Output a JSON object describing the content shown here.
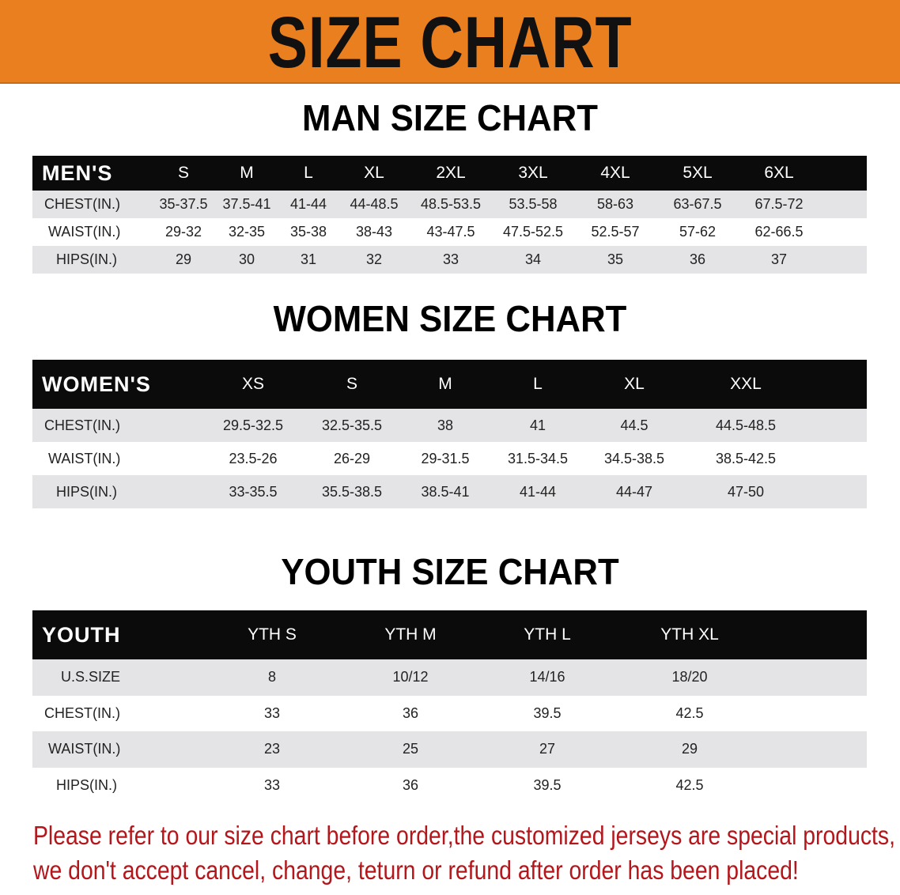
{
  "banner": {
    "title": "SIZE CHART",
    "color": "#e97f1e"
  },
  "men": {
    "title": "MAN SIZE CHART",
    "header": [
      "MEN'S",
      "S",
      "M",
      "L",
      "XL",
      "2XL",
      "3XL",
      "4XL",
      "5XL",
      "6XL"
    ],
    "rows": [
      [
        "CHEST(IN.)",
        "35-37.5",
        "37.5-41",
        "41-44",
        "44-48.5",
        "48.5-53.5",
        "53.5-58",
        "58-63",
        "63-67.5",
        "67.5-72"
      ],
      [
        "WAIST(IN.)",
        "29-32",
        "32-35",
        "35-38",
        "38-43",
        "43-47.5",
        "47.5-52.5",
        "52.5-57",
        "57-62",
        "62-66.5"
      ],
      [
        "HIPS(IN.)",
        "29",
        "30",
        "31",
        "32",
        "33",
        "34",
        "35",
        "36",
        "37"
      ]
    ]
  },
  "women": {
    "title": "WOMEN SIZE CHART",
    "header": [
      "WOMEN'S",
      "XS",
      "S",
      "M",
      "L",
      "XL",
      "XXL"
    ],
    "rows": [
      [
        "CHEST(IN.)",
        "29.5-32.5",
        "32.5-35.5",
        "38",
        "41",
        "44.5",
        "44.5-48.5"
      ],
      [
        "WAIST(IN.)",
        "23.5-26",
        "26-29",
        "29-31.5",
        "31.5-34.5",
        "34.5-38.5",
        "38.5-42.5"
      ],
      [
        "HIPS(IN.)",
        "33-35.5",
        "35.5-38.5",
        "38.5-41",
        "41-44",
        "44-47",
        "47-50"
      ]
    ]
  },
  "youth": {
    "title": "YOUTH SIZE CHART",
    "header": [
      "YOUTH",
      "YTH S",
      "YTH M",
      "YTH L",
      "YTH XL"
    ],
    "rows": [
      [
        "U.S.SIZE",
        "8",
        "10/12",
        "14/16",
        "18/20"
      ],
      [
        "CHEST(IN.)",
        "33",
        "36",
        "39.5",
        "42.5"
      ],
      [
        "WAIST(IN.)",
        "23",
        "25",
        "27",
        "29"
      ],
      [
        "HIPS(IN.)",
        "33",
        "36",
        "39.5",
        "42.5"
      ]
    ]
  },
  "note": {
    "line1": "Please refer to our size chart before order,the customized jerseys are special products,",
    "line2": "we don't accept cancel, change, teturn or refund after order has been placed!",
    "color": "#b3171c"
  }
}
